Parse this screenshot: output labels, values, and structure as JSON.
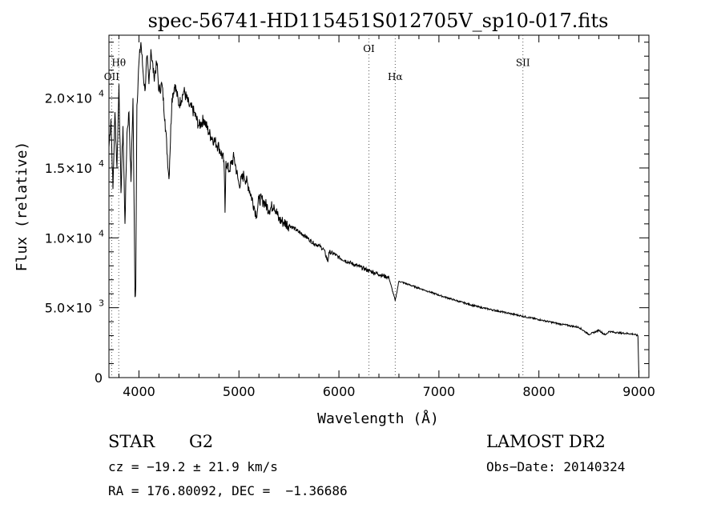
{
  "chart_data": {
    "type": "line",
    "title": "spec-56741-HD115451S012705V_sp10-017.fits",
    "xlabel": "Wavelength (Å)",
    "ylabel": "Flux (relative)",
    "xlim": [
      3700,
      9100
    ],
    "ylim": [
      0,
      24500
    ],
    "x_ticks": [
      4000,
      5000,
      6000,
      7000,
      8000,
      9000
    ],
    "y_ticks": [
      {
        "value": 0,
        "mantissa": "0",
        "exponent": ""
      },
      {
        "value": 5000,
        "mantissa": "5.0×10",
        "exponent": "3"
      },
      {
        "value": 10000,
        "mantissa": "1.0×10",
        "exponent": "4"
      },
      {
        "value": 15000,
        "mantissa": "1.5×10",
        "exponent": "4"
      },
      {
        "value": 20000,
        "mantissa": "2.0×10",
        "exponent": "4"
      }
    ],
    "line_annotations": [
      {
        "label": "OII",
        "x": 3727,
        "label_y": 21300
      },
      {
        "label": "Hθ",
        "x": 3798,
        "label_y": 22300
      },
      {
        "label": "OI",
        "x": 6300,
        "label_y": 23300
      },
      {
        "label": "Hα",
        "x": 6563,
        "label_y": 21300
      },
      {
        "label": "SII",
        "x": 7840,
        "label_y": 22300
      }
    ],
    "series": [
      {
        "x": [
          3700,
          3720,
          3740,
          3760,
          3780,
          3800,
          3820,
          3840,
          3860,
          3880,
          3900,
          3920,
          3940,
          3960,
          3968,
          3980,
          4000,
          4020,
          4040,
          4060,
          4080,
          4100,
          4120,
          4150,
          4180,
          4200,
          4230,
          4260,
          4300,
          4330,
          4360,
          4400,
          4450,
          4500,
          4550,
          4600,
          4650,
          4700,
          4750,
          4800,
          4850,
          4861,
          4870,
          4900,
          4950,
          5000,
          5050,
          5100,
          5150,
          5175,
          5200,
          5250,
          5300,
          5350,
          5400,
          5450,
          5500,
          5550,
          5600,
          5650,
          5700,
          5750,
          5800,
          5850,
          5890,
          5900,
          5950,
          6000,
          6100,
          6200,
          6300,
          6400,
          6500,
          6563,
          6600,
          6700,
          6800,
          6900,
          7000,
          7200,
          7400,
          7600,
          7800,
          8000,
          8200,
          8400,
          8498,
          8542,
          8600,
          8662,
          8700,
          8800,
          8900,
          8950,
          8990,
          9000
        ],
        "y": [
          16500,
          18500,
          13500,
          19000,
          15000,
          21000,
          13200,
          18000,
          11000,
          17500,
          19000,
          14000,
          20000,
          5800,
          6500,
          19500,
          22500,
          24000,
          22000,
          20500,
          23000,
          21000,
          23500,
          21500,
          22500,
          20500,
          21000,
          18500,
          14200,
          20000,
          21000,
          19500,
          20500,
          19500,
          19000,
          18000,
          18500,
          17500,
          17000,
          16500,
          15500,
          11800,
          15500,
          14800,
          15800,
          13800,
          14500,
          13600,
          12300,
          11600,
          12800,
          12600,
          12000,
          12400,
          11300,
          11100,
          10900,
          10700,
          10400,
          10200,
          9900,
          9600,
          9450,
          9150,
          8300,
          9000,
          8850,
          8600,
          8250,
          7950,
          7650,
          7400,
          7150,
          5500,
          6900,
          6650,
          6400,
          6150,
          5900,
          5450,
          5050,
          4750,
          4450,
          4150,
          3850,
          3600,
          3100,
          3200,
          3400,
          3050,
          3300,
          3200,
          3150,
          3100,
          3000,
          100
        ]
      }
    ]
  },
  "info": {
    "object_type": "STAR",
    "subclass": "G2",
    "survey": "LAMOST DR2",
    "redshift": "cz = −19.2 ± 21.9 km/s",
    "obs_date": "Obs−Date: 20140324",
    "coords": "RA = 176.80092, DEC =  −1.36686"
  }
}
